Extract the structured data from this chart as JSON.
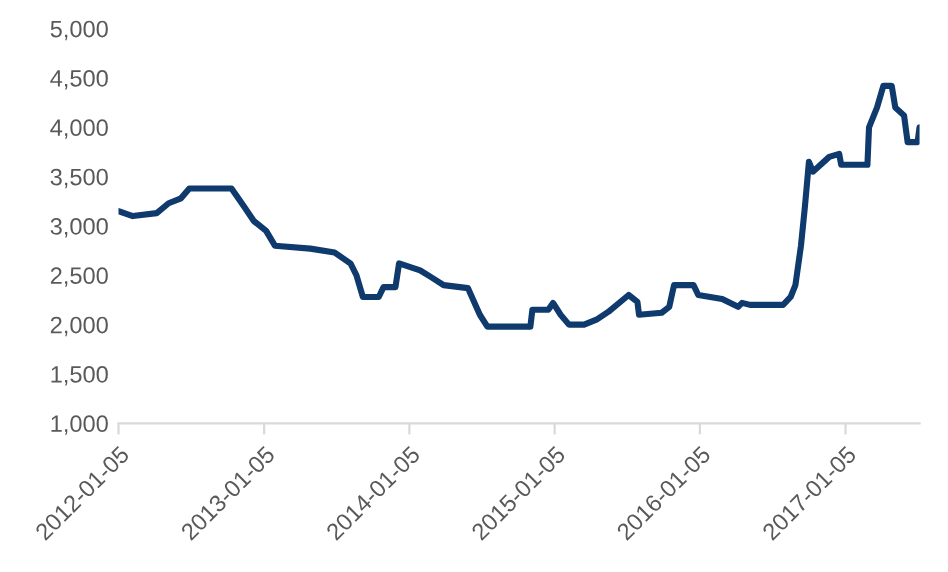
{
  "chart_data": {
    "type": "line",
    "x": [
      "2012-01-05",
      "2012-02-10",
      "2012-04-10",
      "2012-05-10",
      "2012-06-10",
      "2012-07-01",
      "2012-10-15",
      "2012-11-15",
      "2012-12-10",
      "2013-01-10",
      "2013-02-01",
      "2013-05-01",
      "2013-07-01",
      "2013-08-10",
      "2013-08-25",
      "2013-09-10",
      "2013-10-20",
      "2013-11-01",
      "2013-12-01",
      "2013-12-10",
      "2014-02-01",
      "2014-03-01",
      "2014-04-01",
      "2014-06-01",
      "2014-07-01",
      "2014-07-20",
      "2014-11-05",
      "2014-11-10",
      "2014-12-20",
      "2015-01-01",
      "2015-01-20",
      "2015-02-10",
      "2015-03-20",
      "2015-04-20",
      "2015-05-20",
      "2015-07-10",
      "2015-08-01",
      "2015-08-05",
      "2015-10-01",
      "2015-10-20",
      "2015-11-01",
      "2015-12-20",
      "2016-01-01",
      "2016-03-01",
      "2016-04-10",
      "2016-04-20",
      "2016-05-10",
      "2016-08-01",
      "2016-08-20",
      "2016-09-01",
      "2016-09-15",
      "2016-09-25",
      "2016-10-05",
      "2016-10-15",
      "2016-11-25",
      "2016-12-20",
      "2016-12-25",
      "2017-03-01",
      "2017-03-05",
      "2017-03-25",
      "2017-04-10",
      "2017-05-01",
      "2017-05-10",
      "2017-06-01",
      "2017-06-10",
      "2017-07-05",
      "2017-07-10"
    ],
    "series": [
      {
        "color": "#0f3a6e",
        "values": [
          3150,
          3100,
          3130,
          3230,
          3280,
          3380,
          3380,
          3200,
          3050,
          2950,
          2800,
          2770,
          2730,
          2620,
          2500,
          2280,
          2280,
          2380,
          2380,
          2620,
          2550,
          2480,
          2400,
          2370,
          2100,
          1980,
          1980,
          2150,
          2150,
          2220,
          2100,
          2000,
          2000,
          2050,
          2130,
          2300,
          2230,
          2100,
          2120,
          2180,
          2400,
          2400,
          2300,
          2260,
          2180,
          2220,
          2200,
          2200,
          2280,
          2400,
          2800,
          3200,
          3650,
          3550,
          3700,
          3730,
          3620,
          3620,
          4000,
          4200,
          4420,
          4420,
          4200,
          4120,
          3850,
          3850,
          4000
        ]
      }
    ],
    "ylim": [
      1000,
      5000
    ],
    "yticks": [
      {
        "value": 1000,
        "label": "1,000"
      },
      {
        "value": 1500,
        "label": "1,500"
      },
      {
        "value": 2000,
        "label": "2,000"
      },
      {
        "value": 2500,
        "label": "2,500"
      },
      {
        "value": 3000,
        "label": "3,000"
      },
      {
        "value": 3500,
        "label": "3,500"
      },
      {
        "value": 4000,
        "label": "4,000"
      },
      {
        "value": 4500,
        "label": "4,500"
      },
      {
        "value": 5000,
        "label": "5,000"
      }
    ],
    "xlim": [
      "2012-01-05",
      "2017-07-10"
    ],
    "xticks": [
      "2012-01-05",
      "2013-01-05",
      "2014-01-05",
      "2015-01-05",
      "2016-01-05",
      "2017-01-05"
    ],
    "grid": false,
    "legend": false
  }
}
